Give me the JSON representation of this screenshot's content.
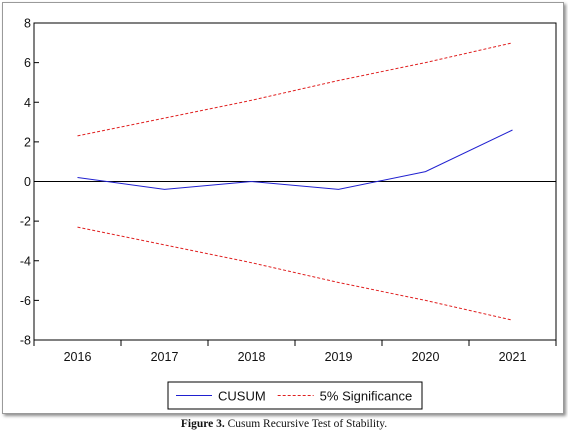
{
  "chart_data": {
    "type": "line",
    "x": [
      "2016",
      "2017",
      "2018",
      "2019",
      "2020",
      "2021"
    ],
    "ylim": [
      -8,
      8
    ],
    "yticks": [
      8,
      6,
      4,
      2,
      0,
      -2,
      -4,
      -6,
      -8
    ],
    "grid": false,
    "legend_position": "bottom",
    "series": [
      {
        "name": "CUSUM",
        "values": [
          0.2,
          -0.4,
          0.0,
          -0.4,
          0.5,
          2.6
        ],
        "color": "#2020d0",
        "style": "solid"
      },
      {
        "name": "5% Significance",
        "values": [
          2.3,
          3.2,
          4.1,
          5.1,
          6.0,
          7.0
        ],
        "color": "#e02020",
        "style": "dashed"
      },
      {
        "name": "",
        "values": [
          -2.3,
          -3.2,
          -4.1,
          -5.1,
          -6.0,
          -7.0
        ],
        "color": "#e02020",
        "style": "dashed"
      }
    ],
    "zero_line": true
  },
  "caption": {
    "label": "Figure 3.",
    "text": " Cusum Recursive Test of Stability."
  }
}
